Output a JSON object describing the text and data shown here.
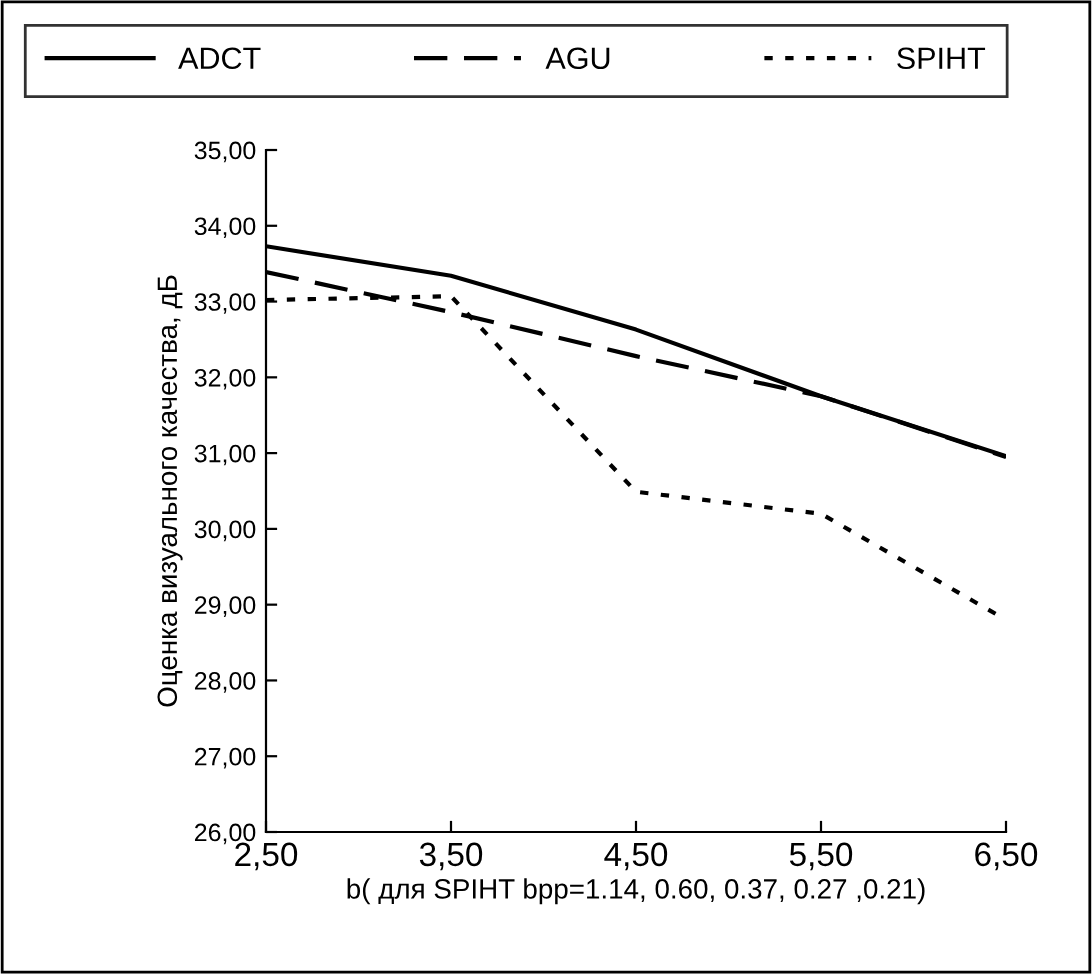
{
  "chart_data": {
    "type": "line",
    "xlabel": "b( для SPIHT bpp=1.14, 0.60, 0.37, 0.27 ,0.21)",
    "ylabel": "Оценка визуального качества, дБ",
    "x": [
      2.5,
      3.5,
      4.5,
      5.5,
      6.5
    ],
    "series": [
      {
        "name": "ADCT",
        "color": "#000000",
        "line_style": "solid",
        "values": [
          33.73,
          33.34,
          32.63,
          31.75,
          30.96
        ]
      },
      {
        "name": "AGU",
        "color": "#000000",
        "line_style": "dashed",
        "values": [
          33.39,
          32.86,
          32.28,
          31.75,
          30.95
        ]
      },
      {
        "name": "SPIHT",
        "color": "#000000",
        "line_style": "dotted",
        "values": [
          33.02,
          33.07,
          30.49,
          30.2,
          28.8
        ]
      }
    ],
    "xlim": [
      2.5,
      6.5
    ],
    "xticks": [
      {
        "value": 2.5,
        "label": "2,50"
      },
      {
        "value": 3.5,
        "label": "3,50"
      },
      {
        "value": 4.5,
        "label": "4,50"
      },
      {
        "value": 5.5,
        "label": "5,50"
      },
      {
        "value": 6.5,
        "label": "6,50"
      }
    ],
    "ylim": [
      26,
      35
    ],
    "yticks": [
      {
        "value": 26,
        "label": "26,00"
      },
      {
        "value": 27,
        "label": "27,00"
      },
      {
        "value": 28,
        "label": "28,00"
      },
      {
        "value": 29,
        "label": "29,00"
      },
      {
        "value": 30,
        "label": "30,00"
      },
      {
        "value": 31,
        "label": "31,00"
      },
      {
        "value": 32,
        "label": "32,00"
      },
      {
        "value": 33,
        "label": "33,00"
      },
      {
        "value": 34,
        "label": "34,00"
      },
      {
        "value": 35,
        "label": "35,00"
      }
    ],
    "grid": false,
    "legend": "top",
    "marker": "none"
  }
}
